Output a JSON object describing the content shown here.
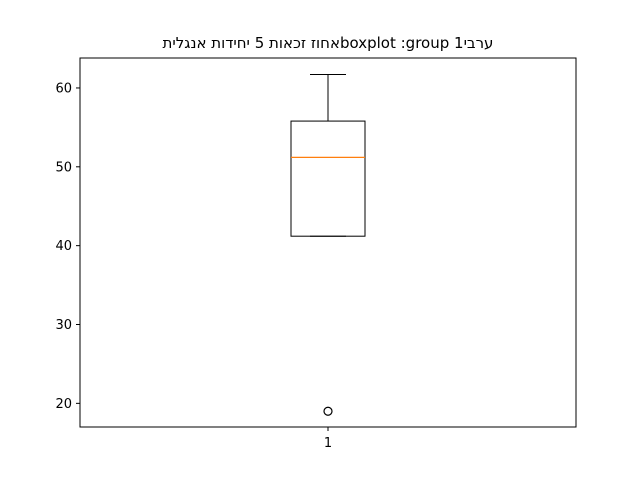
{
  "chart_data": {
    "type": "boxplot",
    "title": "ערבי1 boxplot :groupאחוז זכאות 5 יחידות אנגלית",
    "categories": [
      "1"
    ],
    "boxes": [
      {
        "whisker_low": 41.2,
        "q1": 41.2,
        "median": 51.2,
        "q3": 55.8,
        "whisker_high": 61.7,
        "outliers": [
          19.0
        ]
      }
    ],
    "yticks": [
      20,
      30,
      40,
      50,
      60
    ],
    "ylim": [
      17.0,
      63.8
    ],
    "xlim": [
      0.5,
      1.5
    ],
    "colors": {
      "box": "#000000",
      "median": "#ff7f0e",
      "outlier": "#000000"
    }
  }
}
